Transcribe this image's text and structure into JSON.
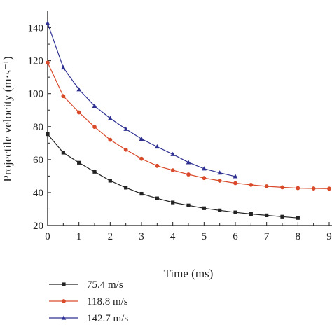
{
  "chart_data": {
    "type": "line",
    "xlabel": "Time (ms)",
    "ylabel": "Projectile velocity (m·s⁻¹)",
    "xlim": [
      0,
      9
    ],
    "ylim": [
      20,
      150
    ],
    "x_ticks": [
      "0",
      "1",
      "2",
      "3",
      "4",
      "5",
      "6",
      "7",
      "8",
      "9"
    ],
    "y_ticks": [
      "20",
      "40",
      "60",
      "80",
      "100",
      "120",
      "140"
    ],
    "grid": false,
    "legend_position": "bottom",
    "series": [
      {
        "name": "75.4 m/s",
        "color": "#222222",
        "marker": "square",
        "x": [
          0,
          0.5,
          1,
          1.5,
          2,
          2.5,
          3,
          3.5,
          4,
          4.5,
          5,
          5.5,
          6,
          6.5,
          7,
          7.5,
          8
        ],
        "y": [
          75.4,
          64.2,
          58.1,
          52.6,
          47.2,
          43.0,
          39.3,
          36.5,
          34.0,
          32.2,
          30.5,
          29.2,
          28.0,
          27.0,
          26.2,
          25.4,
          24.6
        ]
      },
      {
        "name": "118.8 m/s",
        "color": "#d94a2b",
        "marker": "circle",
        "x": [
          0,
          0.5,
          1,
          1.5,
          2,
          2.5,
          3,
          3.5,
          4,
          4.5,
          5,
          5.5,
          6,
          6.5,
          7,
          7.5,
          8,
          8.5,
          9
        ],
        "y": [
          118.8,
          98.5,
          88.6,
          79.8,
          72.0,
          66.0,
          60.5,
          56.2,
          53.5,
          51.0,
          48.8,
          47.2,
          45.7,
          44.7,
          43.8,
          43.2,
          42.7,
          42.5,
          42.4
        ]
      },
      {
        "name": "142.7 m/s",
        "color": "#2e3192",
        "marker": "triangle",
        "x": [
          0,
          0.5,
          1,
          1.5,
          2,
          2.5,
          3,
          3.5,
          4,
          4.5,
          5,
          5.5,
          6
        ],
        "y": [
          142.7,
          115.8,
          102.5,
          92.5,
          85.0,
          78.5,
          72.5,
          67.8,
          63.2,
          58.3,
          54.5,
          52.0,
          49.8
        ]
      }
    ]
  }
}
